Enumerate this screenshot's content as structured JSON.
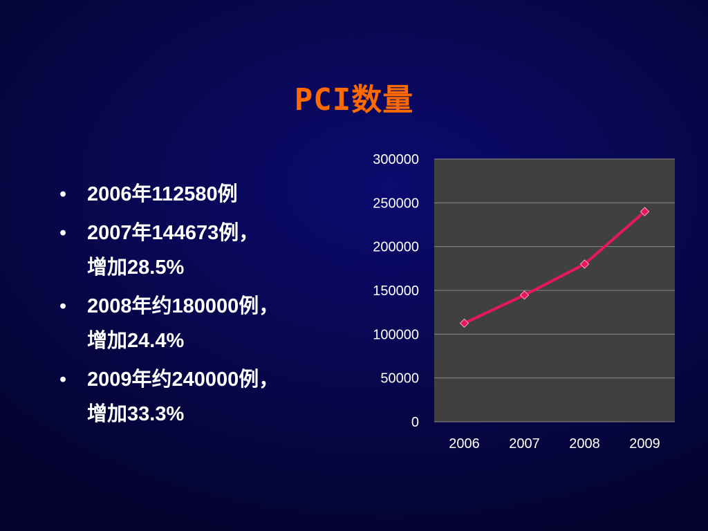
{
  "title": "PCI数量",
  "bullets": [
    {
      "lines": [
        "2006年112580例"
      ]
    },
    {
      "lines": [
        "2007年144673例，",
        "增加28.5%"
      ]
    },
    {
      "lines": [
        "2008年约180000例，",
        "增加24.4%"
      ]
    },
    {
      "lines": [
        "2009年约240000例，",
        "增加33.3%"
      ]
    }
  ],
  "chart_data": {
    "type": "line",
    "x": [
      "2006",
      "2007",
      "2008",
      "2009"
    ],
    "series": [
      {
        "values": [
          112580,
          144673,
          180000,
          240000
        ],
        "color": "#e8175d"
      }
    ],
    "ylim": [
      0,
      300000
    ],
    "yticks": [
      "0",
      "50000",
      "100000",
      "150000",
      "200000",
      "250000",
      "300000"
    ],
    "grid": true,
    "legend": "none",
    "plot_background": "#404040",
    "gridline_color": "#8a8a8a",
    "tick_label_color": "#ffffff"
  },
  "colors": {
    "title": "#ff6a00",
    "text": "#ffffff",
    "background": "#05043a"
  }
}
